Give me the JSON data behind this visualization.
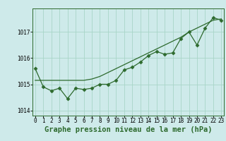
{
  "hours": [
    0,
    1,
    2,
    3,
    4,
    5,
    6,
    7,
    8,
    9,
    10,
    11,
    12,
    13,
    14,
    15,
    16,
    17,
    18,
    19,
    20,
    21,
    22,
    23
  ],
  "pressure_actual": [
    1015.6,
    1014.9,
    1014.75,
    1014.85,
    1014.45,
    1014.85,
    1014.8,
    1014.85,
    1015.0,
    1015.0,
    1015.15,
    1015.55,
    1015.65,
    1015.85,
    1016.1,
    1016.25,
    1016.15,
    1016.2,
    1016.75,
    1017.0,
    1016.5,
    1017.15,
    1017.55,
    1017.45
  ],
  "pressure_smooth": [
    1015.15,
    1015.15,
    1015.15,
    1015.15,
    1015.15,
    1015.15,
    1015.15,
    1015.2,
    1015.3,
    1015.45,
    1015.6,
    1015.75,
    1015.9,
    1016.05,
    1016.2,
    1016.35,
    1016.5,
    1016.65,
    1016.8,
    1017.0,
    1017.15,
    1017.3,
    1017.45,
    1017.5
  ],
  "ylim": [
    1013.8,
    1017.9
  ],
  "yticks": [
    1014,
    1015,
    1016,
    1017
  ],
  "xlim": [
    -0.3,
    23.3
  ],
  "xticks": [
    0,
    1,
    2,
    3,
    4,
    5,
    6,
    7,
    8,
    9,
    10,
    11,
    12,
    13,
    14,
    15,
    16,
    17,
    18,
    19,
    20,
    21,
    22,
    23
  ],
  "xlabel": "Graphe pression niveau de la mer (hPa)",
  "line_color": "#2d6a2d",
  "bg_color": "#ceeaea",
  "grid_color": "#a8d5c8",
  "marker": "D",
  "marker_size": 2.5,
  "label_fontsize": 7.5,
  "tick_fontsize": 5.5
}
